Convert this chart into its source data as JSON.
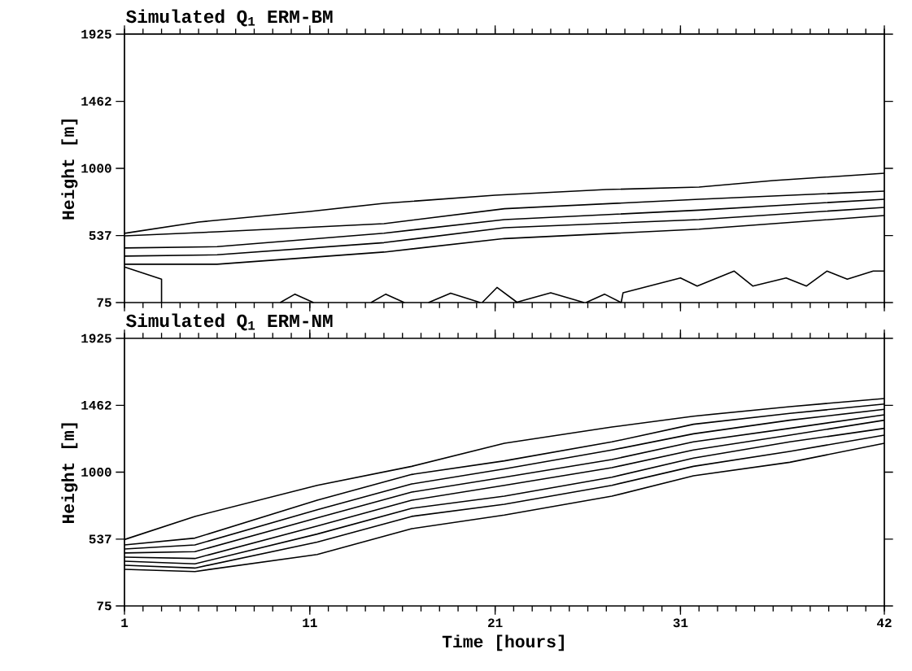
{
  "chart_data": [
    {
      "type": "line",
      "title": "Simulated Q$_{1}$ ERM-BM",
      "ylabel": "Height [m]",
      "xlim": [
        1,
        42
      ],
      "ylim": [
        75,
        1925
      ],
      "xticks": [
        1,
        11,
        21,
        31,
        42
      ],
      "yticks": [
        75,
        537,
        1000,
        1462,
        1925
      ],
      "tick_labels": "y",
      "series": [
        {
          "color": "#000000",
          "x": [
            1,
            5,
            11,
            15,
            21,
            27,
            32,
            36,
            42
          ],
          "values": [
            552,
            630,
            703,
            759,
            815,
            854,
            871,
            916,
            966
          ]
        },
        {
          "color": "#000000",
          "x": [
            1,
            6,
            15,
            21.5,
            32,
            42
          ],
          "values": [
            535,
            563,
            619,
            722,
            787,
            843
          ]
        },
        {
          "color": "#000000",
          "x": [
            1,
            6,
            15,
            21.5,
            32,
            42
          ],
          "values": [
            451,
            460,
            553,
            647,
            712,
            787
          ]
        },
        {
          "color": "#000000",
          "x": [
            1,
            6,
            15,
            21.5,
            32,
            42
          ],
          "values": [
            395,
            404,
            488,
            591,
            647,
            731
          ]
        },
        {
          "color": "#000000",
          "x": [
            1,
            6,
            15,
            21.5,
            32,
            42
          ],
          "values": [
            339,
            339,
            423,
            516,
            581,
            675
          ]
        },
        {
          "color": "#000000",
          "x": [
            1,
            3,
            3
          ],
          "values": [
            320,
            236,
            75
          ]
        },
        {
          "color": "#000000",
          "x": [
            9.4,
            10.2,
            11.2
          ],
          "values": [
            75,
            133,
            75
          ]
        },
        {
          "color": "#000000",
          "x": [
            14.3,
            15.1,
            16.1
          ],
          "values": [
            75,
            133,
            75
          ]
        },
        {
          "color": "#000000",
          "x": [
            17.4,
            18.6,
            20.2
          ],
          "values": [
            75,
            140,
            75
          ]
        },
        {
          "color": "#000000",
          "x": [
            20.3,
            21.1,
            22.2
          ],
          "values": [
            75,
            179,
            75
          ]
        },
        {
          "color": "#000000",
          "x": [
            22.1,
            24,
            25.8
          ],
          "values": [
            75,
            142,
            75
          ]
        },
        {
          "color": "#000000",
          "x": [
            25.9,
            26.9,
            27.8
          ],
          "values": [
            75,
            133,
            75
          ]
        },
        {
          "color": "#000000",
          "x": [
            27.8,
            27.9,
            31,
            31.9,
            33.9,
            34.9,
            36.7,
            37.8,
            38.9,
            40,
            41.4,
            42
          ],
          "values": [
            75,
            142,
            245,
            189,
            292,
            189,
            245,
            189,
            292,
            236,
            292,
            292
          ]
        }
      ]
    },
    {
      "type": "line",
      "title": "Simulated Q$_{1}$ ERM-NM",
      "xlabel": "Time [hours]",
      "ylabel": "Height [m]",
      "xlim": [
        1,
        42
      ],
      "ylim": [
        75,
        1925
      ],
      "xticks": [
        1,
        11,
        21,
        31,
        42
      ],
      "yticks": [
        75,
        537,
        1000,
        1462,
        1925
      ],
      "series": [
        {
          "color": "#000000",
          "x": [
            1,
            4.8,
            11.4,
            16.5,
            21.5,
            27.3,
            31.7,
            36.9,
            42
          ],
          "values": [
            534,
            694,
            909,
            1040,
            1200,
            1312,
            1387,
            1453,
            1509
          ]
        },
        {
          "color": "#000000",
          "x": [
            1,
            4.8,
            11.4,
            16.5,
            21.5,
            27.3,
            31.7,
            36.9,
            42
          ],
          "values": [
            497,
            544,
            806,
            984,
            1078,
            1209,
            1331,
            1406,
            1471
          ]
        },
        {
          "color": "#000000",
          "x": [
            1,
            4.8,
            11.4,
            16.5,
            21.5,
            27.3,
            31.7,
            36.9,
            42
          ],
          "values": [
            469,
            497,
            740,
            918,
            1022,
            1153,
            1265,
            1359,
            1434
          ]
        },
        {
          "color": "#000000",
          "x": [
            1,
            4.8,
            11.4,
            16.5,
            21.5,
            27.3,
            31.7,
            36.9,
            42
          ],
          "values": [
            441,
            450,
            684,
            862,
            965,
            1087,
            1209,
            1303,
            1396
          ]
        },
        {
          "color": "#000000",
          "x": [
            1,
            4.8,
            11.4,
            16.5,
            21.5,
            27.3,
            31.7,
            36.9,
            42
          ],
          "values": [
            412,
            403,
            628,
            806,
            909,
            1031,
            1153,
            1256,
            1359
          ]
        },
        {
          "color": "#000000",
          "x": [
            1,
            4.8,
            11.4,
            16.5,
            21.5,
            27.3,
            31.7,
            36.9,
            42
          ],
          "values": [
            384,
            366,
            572,
            750,
            834,
            965,
            1097,
            1209,
            1303
          ]
        },
        {
          "color": "#000000",
          "x": [
            1,
            4.8,
            11.4,
            16.5,
            21.5,
            27.3,
            31.7,
            36.9,
            42
          ],
          "values": [
            356,
            337,
            516,
            694,
            778,
            909,
            1040,
            1143,
            1256
          ]
        },
        {
          "color": "#000000",
          "x": [
            1,
            4.8,
            11.4,
            16.5,
            21.5,
            27.3,
            31.7,
            36.9,
            42
          ],
          "values": [
            328,
            313,
            431,
            609,
            703,
            834,
            975,
            1068,
            1200
          ]
        }
      ]
    }
  ]
}
